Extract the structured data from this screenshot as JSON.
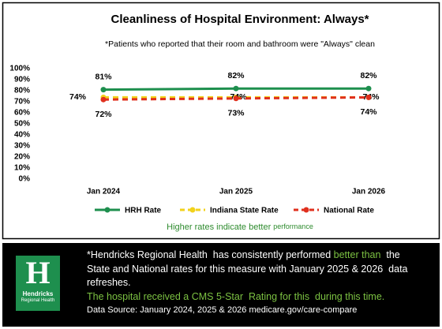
{
  "chart_data": {
    "type": "line",
    "title": "Cleanliness of Hospital Environment: Always*",
    "subtitle": "*Patients who reported that their room and bathroom were \"Always\" clean",
    "categories": [
      "Jan 2024",
      "Jan 2025",
      "Jan 2026"
    ],
    "series": [
      {
        "name": "HRH Rate",
        "color": "#1e8f4e",
        "dashed": false,
        "values": [
          81,
          82,
          82
        ],
        "value_labels": [
          "81%",
          "82%",
          "82%"
        ]
      },
      {
        "name": "Indiana State Rate",
        "color": "#f2d21b",
        "dashed": true,
        "values": [
          74,
          74,
          74
        ],
        "value_labels": [
          "74%",
          "74%",
          "74%"
        ]
      },
      {
        "name": "National Rate",
        "color": "#e0301e",
        "dashed": true,
        "values": [
          72,
          73,
          74
        ],
        "value_labels": [
          "72%",
          "73%",
          "74%"
        ]
      }
    ],
    "ylim": [
      0,
      100
    ],
    "yticks": [
      {
        "value": 0,
        "label": "0%"
      },
      {
        "value": 10,
        "label": "10%"
      },
      {
        "value": 20,
        "label": "20%"
      },
      {
        "value": 30,
        "label": "30%"
      },
      {
        "value": 40,
        "label": "40%"
      },
      {
        "value": 50,
        "label": "50%"
      },
      {
        "value": 60,
        "label": "60%"
      },
      {
        "value": 70,
        "label": "70%"
      },
      {
        "value": 80,
        "label": "80%"
      },
      {
        "value": 90,
        "label": "90%"
      },
      {
        "value": 100,
        "label": "100%"
      }
    ],
    "grid": false,
    "legend": "bottom",
    "note": {
      "text": "Higher rates indicate better",
      "small": "performance"
    }
  },
  "footer": {
    "logo_text": [
      "Hendricks",
      "Regional Health"
    ],
    "statement_lines": [
      [
        {
          "text": "*Hendricks Regional Health  has consistently performed "
        },
        {
          "text": "better than",
          "color": "#7cc242"
        },
        {
          "text": "  the"
        }
      ],
      [
        {
          "text": "State and National rates for this measure with January 2025 & 2026  data"
        }
      ],
      [
        {
          "text": "refreshes."
        }
      ],
      [
        {
          "text": "The hospital received a CMS 5-Star  Rating for this  during this time.",
          "color": "#7cc242"
        }
      ]
    ],
    "source": "Data Source: January 2024, 2025 & 2026 medicare.gov/care-compare"
  }
}
